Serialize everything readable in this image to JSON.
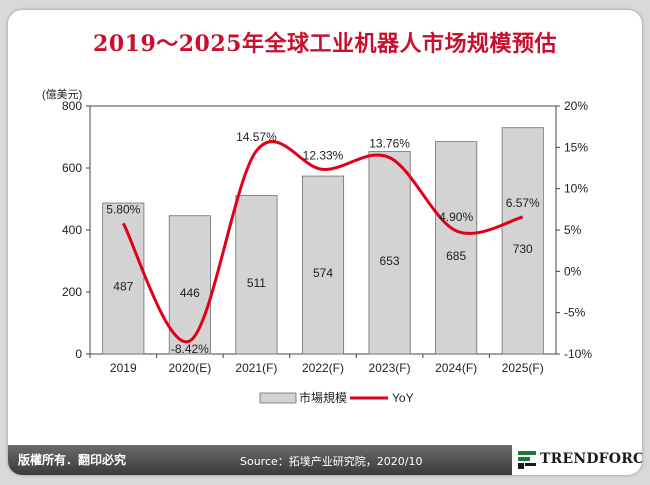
{
  "title": "2019～2025年全球工业机器人市场规模预估",
  "footer": {
    "rights": "版權所有．翻印必究",
    "source": "Source：拓墣产业研究院，2020/10",
    "logo_text": "TRENDFORCE"
  },
  "chart_data": {
    "type": "bar",
    "categories": [
      "2019",
      "2020(E)",
      "2021(F)",
      "2022(F)",
      "2023(F)",
      "2024(F)",
      "2025(F)"
    ],
    "y_unit": "(億美元)",
    "ylim": [
      0,
      800
    ],
    "yticks": [
      "0",
      "200",
      "400",
      "600",
      "800"
    ],
    "y2lim": [
      -10,
      20
    ],
    "y2ticks": [
      "-10%",
      "-5%",
      "0%",
      "5%",
      "10%",
      "15%",
      "20%"
    ],
    "series": [
      {
        "name": "市場規模",
        "type": "bar",
        "values": [
          487,
          446,
          511,
          574,
          653,
          685,
          730
        ],
        "labels": [
          "487",
          "446",
          "511",
          "574",
          "653",
          "685",
          "730"
        ],
        "color": "#d3d3d3"
      },
      {
        "name": "YoY",
        "type": "line",
        "axis": "right",
        "values": [
          5.8,
          -8.42,
          14.57,
          12.33,
          13.76,
          4.9,
          6.57
        ],
        "labels": [
          "5.80%",
          "-8.42%",
          "14.57%",
          "12.33%",
          "13.76%",
          "4.90%",
          "6.57%"
        ],
        "color": "#e0001b"
      }
    ],
    "grid": false,
    "legend": "bottom"
  }
}
